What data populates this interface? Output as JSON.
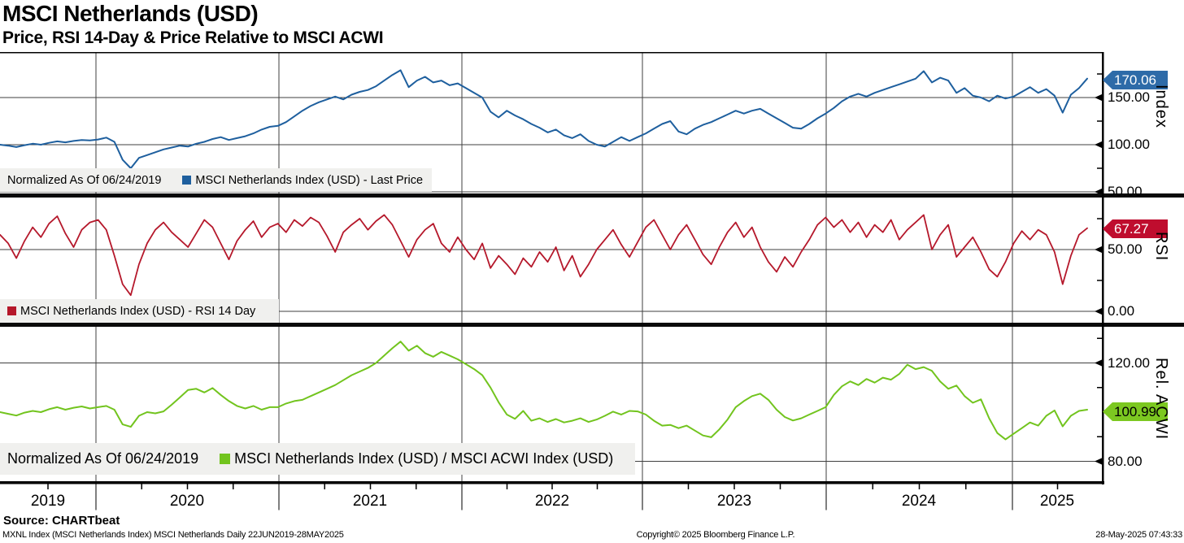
{
  "header": {
    "title": "MSCI Netherlands (USD)",
    "subtitle": "Price, RSI 14-Day & Price Relative to MSCI ACWI"
  },
  "x_axis": {
    "years": [
      "2019",
      "2020",
      "2021",
      "2022",
      "2023",
      "2024",
      "2025"
    ],
    "frequency": "Daily",
    "period": "22JUN2019-28MAY2025"
  },
  "chart_data": [
    {
      "type": "line",
      "name": "price",
      "legend_note": "Normalized As Of 06/24/2019",
      "last_value": "170.06",
      "badge_color": "#2e6ba8",
      "badge_text_color": "#ffffff",
      "y_axis": {
        "label": "Index",
        "ticks": [
          {
            "value": 150,
            "label": "150.00"
          },
          {
            "value": 100,
            "label": "100.00"
          },
          {
            "value": 50,
            "label": "50.00"
          }
        ],
        "minor_ticks": [
          175,
          125,
          75
        ],
        "range": [
          45,
          196
        ]
      },
      "series": [
        {
          "name": "MSCI Netherlands Index (USD) - Last Price",
          "color": "#1e5f9e",
          "values": [
            100,
            99,
            97.5,
            99.5,
            101,
            100,
            102,
            103.5,
            102.5,
            104,
            105,
            104.5,
            105.5,
            107.5,
            103,
            84,
            75,
            86,
            89,
            92,
            95,
            97,
            99,
            98,
            101,
            103,
            106,
            108,
            105,
            107,
            109,
            112,
            116,
            119,
            120,
            124,
            130,
            136,
            141,
            145,
            148,
            151,
            148,
            153,
            156,
            158,
            162,
            168,
            174,
            179,
            161,
            168,
            172,
            166,
            168,
            163,
            165,
            160,
            155,
            150,
            135,
            129,
            136,
            131,
            127,
            122,
            118,
            113,
            116,
            110,
            107,
            111,
            104,
            100,
            98,
            103,
            108,
            104,
            108,
            112,
            117,
            122,
            125,
            114,
            111,
            117,
            121,
            124,
            128,
            132,
            136,
            133,
            136,
            138,
            133,
            128,
            123,
            118,
            117,
            122,
            128,
            133,
            139,
            146,
            151,
            154,
            151,
            155,
            158,
            161,
            164,
            167,
            170,
            178,
            166,
            171,
            168,
            155,
            160,
            152,
            150,
            146,
            152,
            149,
            151,
            156,
            161,
            155,
            159,
            152,
            134,
            153,
            160,
            170.06
          ]
        }
      ]
    },
    {
      "type": "line",
      "name": "rsi",
      "last_value": "67.27",
      "badge_color": "#bf0d2e",
      "badge_text_color": "#ffffff",
      "y_axis": {
        "label": "RSI",
        "ticks": [
          {
            "value": 50,
            "label": "50.00"
          },
          {
            "value": 0,
            "label": "0.00"
          }
        ],
        "minor_ticks": [
          75,
          25
        ],
        "range": [
          0,
          91
        ]
      },
      "series": [
        {
          "name": "MSCI Netherlands Index (USD) - RSI 14 Day",
          "color": "#b5182b",
          "values": [
            62,
            55,
            43,
            57,
            68,
            60,
            71,
            77,
            63,
            52,
            66,
            72,
            74,
            66,
            45,
            22,
            13,
            38,
            55,
            66,
            72,
            64,
            58,
            52,
            63,
            74,
            68,
            55,
            42,
            57,
            66,
            73,
            60,
            68,
            71,
            64,
            74,
            69,
            76,
            72,
            61,
            48,
            64,
            70,
            75,
            66,
            73,
            78,
            70,
            57,
            44,
            58,
            66,
            71,
            55,
            48,
            60,
            50,
            42,
            55,
            35,
            45,
            38,
            30,
            43,
            36,
            48,
            40,
            52,
            33,
            45,
            28,
            38,
            50,
            58,
            66,
            54,
            44,
            56,
            68,
            74,
            62,
            50,
            62,
            70,
            58,
            46,
            38,
            52,
            64,
            72,
            60,
            68,
            52,
            40,
            32,
            44,
            36,
            48,
            58,
            70,
            76,
            68,
            74,
            64,
            72,
            60,
            70,
            64,
            74,
            58,
            66,
            72,
            78,
            50,
            62,
            70,
            44,
            52,
            60,
            48,
            34,
            28,
            40,
            55,
            65,
            58,
            66,
            62,
            48,
            22,
            45,
            62,
            67.27
          ]
        }
      ]
    },
    {
      "type": "line",
      "name": "rel_acwi",
      "legend_note": "Normalized As Of 06/24/2019",
      "last_value": "100.99",
      "badge_color": "#7cc821",
      "badge_text_color": "#000000",
      "y_axis": {
        "label": "Rel. ACWI",
        "ticks": [
          {
            "value": 120,
            "label": "120.00"
          },
          {
            "value": 80,
            "label": "80.00"
          }
        ],
        "minor_ticks": [
          130,
          110,
          90
        ],
        "range": [
          71,
          134
        ]
      },
      "series": [
        {
          "name": "MSCI Netherlands Index (USD) / MSCI ACWI Index (USD)",
          "color": "#72c41e",
          "values": [
            100,
            99.3,
            98.6,
            99.8,
            100.5,
            100,
            101.2,
            102,
            101,
            101.8,
            102.3,
            101.5,
            102,
            102.5,
            101,
            95,
            94,
            98.5,
            100,
            99.5,
            100.3,
            103,
            106,
            109,
            109.5,
            108,
            109.8,
            107,
            104.5,
            102.5,
            101.5,
            102.5,
            101,
            102,
            102,
            103.5,
            104.5,
            105,
            106.5,
            108,
            109.5,
            111,
            113,
            115,
            116.5,
            118,
            120,
            123,
            126,
            128.7,
            125,
            127,
            124,
            122.5,
            124.5,
            123,
            121.5,
            119.5,
            117.5,
            115,
            110,
            104,
            99,
            97.3,
            100.5,
            96.5,
            97.5,
            96,
            97.2,
            95.8,
            96.5,
            97.5,
            96,
            97,
            98.5,
            100.2,
            99,
            100.5,
            100.3,
            99,
            96.5,
            94.5,
            94.8,
            93.5,
            94.5,
            92.5,
            90.5,
            89.8,
            93,
            97,
            102,
            104.5,
            106.5,
            107.5,
            105,
            101,
            98,
            96.6,
            97.5,
            99,
            100.5,
            102,
            107,
            110.5,
            112.5,
            111,
            113.5,
            112,
            114,
            113.2,
            115.5,
            119.3,
            117.5,
            118.3,
            116.8,
            112.5,
            109.5,
            110.8,
            106.5,
            103.8,
            105.2,
            97.5,
            91.5,
            88.9,
            91.2,
            93.5,
            95.8,
            94.5,
            98.5,
            100.7,
            94.2,
            98.5,
            100.5,
            100.99
          ]
        }
      ]
    }
  ],
  "footer": {
    "source": "Source: CHARTbeat",
    "meta_left": "MXNL Index (MSCI Netherlands Index) MSCI Netherlands  Daily 22JUN2019-28MAY2025",
    "meta_center": "Copyright© 2025 Bloomberg Finance L.P.",
    "meta_right": "28-May-2025 07:43:33"
  }
}
